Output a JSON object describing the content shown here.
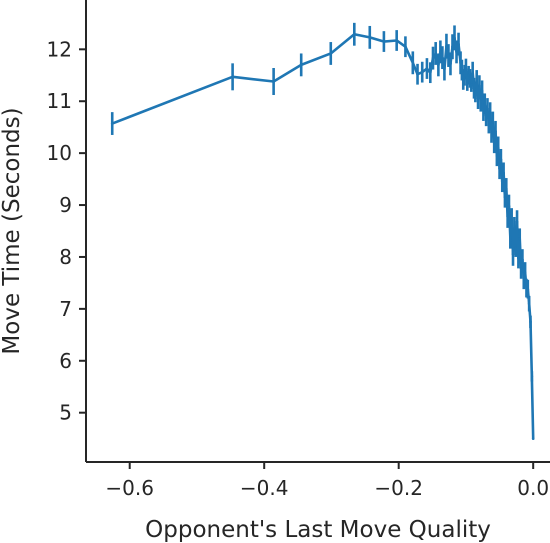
{
  "chart_data": {
    "type": "line",
    "title": "",
    "xlabel": "Opponent's Last Move Quality",
    "ylabel": "Move Time (Seconds)",
    "xlim": [
      -0.665,
      0.025
    ],
    "ylim": [
      4.05,
      12.95
    ],
    "xticks": [
      -0.6,
      -0.4,
      -0.2,
      0.0
    ],
    "xtick_labels": [
      "−0.6",
      "−0.4",
      "−0.2",
      "0.0"
    ],
    "yticks": [
      5,
      6,
      7,
      8,
      9,
      10,
      11,
      12
    ],
    "ytick_labels": [
      "5",
      "6",
      "7",
      "8",
      "9",
      "10",
      "11",
      "12"
    ],
    "grid": false,
    "legend": "none",
    "colors": {
      "series": "#1f77b4",
      "axis": "#262626"
    },
    "series": [
      {
        "x": [
          -0.626,
          -0.447,
          -0.386,
          -0.345,
          -0.301,
          -0.266,
          -0.243,
          -0.222,
          -0.203,
          -0.19,
          -0.179,
          -0.172,
          -0.165,
          -0.158,
          -0.153,
          -0.149,
          -0.145,
          -0.141,
          -0.138,
          -0.135,
          -0.132,
          -0.129,
          -0.126,
          -0.123,
          -0.12,
          -0.117,
          -0.114,
          -0.111,
          -0.108,
          -0.106,
          -0.104,
          -0.102,
          -0.1,
          -0.098,
          -0.096,
          -0.094,
          -0.092,
          -0.09,
          -0.088,
          -0.086,
          -0.084,
          -0.082,
          -0.08,
          -0.078,
          -0.076,
          -0.074,
          -0.072,
          -0.07,
          -0.068,
          -0.066,
          -0.064,
          -0.062,
          -0.06,
          -0.058,
          -0.056,
          -0.054,
          -0.052,
          -0.05,
          -0.048,
          -0.046,
          -0.044,
          -0.042,
          -0.04,
          -0.038,
          -0.036,
          -0.034,
          -0.032,
          -0.03,
          -0.028,
          -0.026,
          -0.024,
          -0.022,
          -0.02,
          -0.018,
          -0.016,
          -0.014,
          -0.012,
          -0.01,
          -0.008,
          -0.006,
          -0.004,
          -0.002,
          0.0
        ],
        "y": [
          10.57,
          11.47,
          11.38,
          11.7,
          11.92,
          12.29,
          12.23,
          12.15,
          12.17,
          12.05,
          11.74,
          11.52,
          11.56,
          11.63,
          11.55,
          11.83,
          11.92,
          11.7,
          11.95,
          11.84,
          11.62,
          12.06,
          11.88,
          11.72,
          12.05,
          12.22,
          11.95,
          12.1,
          11.74,
          11.6,
          11.42,
          11.5,
          11.62,
          11.38,
          11.5,
          11.44,
          11.36,
          11.56,
          11.25,
          11.18,
          11.4,
          11.05,
          11.3,
          11.0,
          11.2,
          10.82,
          10.95,
          10.72,
          10.86,
          10.58,
          10.78,
          10.4,
          10.6,
          10.2,
          10.42,
          9.95,
          10.12,
          9.7,
          9.88,
          9.45,
          9.62,
          9.15,
          9.32,
          8.78,
          8.98,
          8.38,
          8.72,
          8.05,
          8.55,
          8.22,
          8.68,
          7.98,
          8.35,
          7.78,
          7.95,
          7.58,
          7.7,
          7.4,
          7.38,
          7.1,
          6.75,
          5.7,
          4.5
        ],
        "err": [
          0.22,
          0.26,
          0.26,
          0.22,
          0.22,
          0.22,
          0.22,
          0.2,
          0.2,
          0.2,
          0.22,
          0.2,
          0.2,
          0.2,
          0.2,
          0.22,
          0.22,
          0.22,
          0.22,
          0.22,
          0.22,
          0.24,
          0.22,
          0.22,
          0.24,
          0.24,
          0.22,
          0.22,
          0.22,
          0.2,
          0.2,
          0.2,
          0.2,
          0.18,
          0.18,
          0.18,
          0.18,
          0.2,
          0.2,
          0.2,
          0.2,
          0.2,
          0.2,
          0.2,
          0.2,
          0.2,
          0.2,
          0.2,
          0.2,
          0.2,
          0.2,
          0.2,
          0.2,
          0.2,
          0.2,
          0.2,
          0.2,
          0.2,
          0.2,
          0.2,
          0.2,
          0.2,
          0.2,
          0.22,
          0.22,
          0.22,
          0.22,
          0.22,
          0.22,
          0.22,
          0.22,
          0.2,
          0.2,
          0.2,
          0.2,
          0.2,
          0.2,
          0.18,
          0.18,
          0.15,
          0.12,
          0.1,
          0.0
        ]
      }
    ]
  }
}
